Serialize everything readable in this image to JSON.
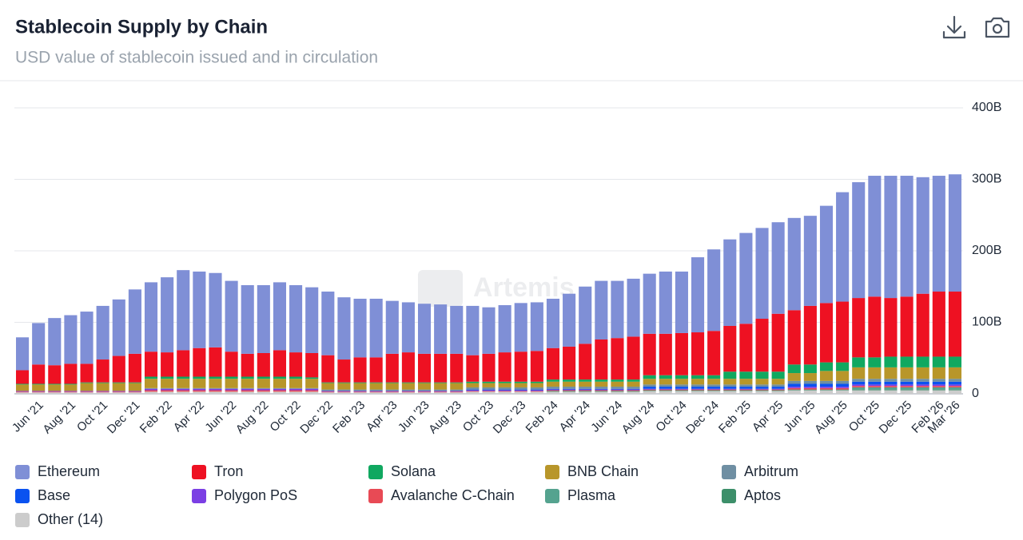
{
  "chart_data": {
    "type": "stacked_bar",
    "title": "Stablecoin Supply by Chain",
    "subtitle": "USD value of stablecoin issued and in circulation",
    "watermark": "Artemis",
    "categories": [
      null,
      "Jun '21",
      null,
      "Aug '21",
      null,
      "Oct '21",
      null,
      "Dec '21",
      null,
      "Feb '22",
      null,
      "Apr '22",
      null,
      "Jun '22",
      null,
      "Aug '22",
      null,
      "Oct '22",
      null,
      "Dec '22",
      null,
      "Feb '23",
      null,
      "Apr '23",
      null,
      "Jun '23",
      null,
      "Aug '23",
      null,
      "Oct '23",
      null,
      "Dec '23",
      null,
      "Feb '24",
      null,
      "Apr '24",
      null,
      "Jun '24",
      null,
      "Aug '24",
      null,
      "Oct '24",
      null,
      "Dec '24",
      null,
      "Feb '25",
      null,
      "Apr '25",
      null,
      "Jun '25",
      null,
      "Aug '25",
      null,
      "Oct '25",
      null,
      "Dec '25",
      null,
      "Feb '26",
      "Mar '26"
    ],
    "series": [
      {
        "name": "Ethereum",
        "color": "#7f8fd6",
        "values": [
          46,
          58,
          66,
          68,
          73,
          75,
          79,
          90,
          97,
          105,
          112,
          107,
          104,
          99,
          96,
          95,
          95,
          94,
          92,
          89,
          87,
          82,
          82,
          74,
          70,
          70,
          69,
          67,
          69,
          65,
          66,
          68,
          68,
          69,
          74,
          80,
          82,
          80,
          81,
          84,
          87,
          86,
          105,
          114,
          121,
          127,
          127,
          128,
          129,
          126,
          136,
          153,
          162,
          169,
          171,
          169,
          163,
          162,
          164
        ]
      },
      {
        "name": "Tron",
        "color": "#ee1122",
        "values": [
          19,
          27,
          26,
          28,
          26,
          32,
          37,
          40,
          35,
          34,
          37,
          40,
          41,
          35,
          32,
          33,
          37,
          34,
          34,
          38,
          32,
          35,
          35,
          40,
          42,
          40,
          40,
          40,
          37,
          39,
          41,
          42,
          43,
          44,
          46,
          50,
          56,
          58,
          60,
          58,
          58,
          59,
          60,
          62,
          64,
          67,
          74,
          81,
          76,
          82,
          83,
          85,
          83,
          85,
          82,
          84,
          88,
          91,
          91
        ]
      },
      {
        "name": "Solana",
        "color": "#10a860",
        "values": [
          1,
          1,
          1,
          1,
          1,
          1,
          1,
          1,
          3,
          3,
          3,
          3,
          3,
          3,
          3,
          3,
          3,
          3,
          2,
          1,
          1,
          1,
          1,
          1,
          1,
          1,
          1,
          1,
          2,
          2,
          2,
          2,
          2,
          3,
          3,
          3,
          3,
          3,
          3,
          5,
          5,
          5,
          5,
          5,
          10,
          10,
          10,
          10,
          12,
          12,
          12,
          12,
          14,
          14,
          15,
          15,
          15,
          15,
          15
        ]
      },
      {
        "name": "BNB Chain",
        "color": "#b8962a",
        "values": [
          9,
          9,
          9,
          9,
          11,
          11,
          11,
          11,
          13,
          13,
          13,
          13,
          13,
          13,
          13,
          13,
          13,
          13,
          13,
          9,
          9,
          9,
          9,
          9,
          9,
          9,
          9,
          9,
          6,
          6,
          6,
          6,
          6,
          7,
          7,
          7,
          7,
          7,
          7,
          8,
          8,
          8,
          8,
          8,
          8,
          8,
          8,
          8,
          11,
          11,
          14,
          14,
          16,
          16,
          16,
          16,
          16,
          16,
          16
        ]
      },
      {
        "name": "Arbitrum",
        "color": "#6f8fa3",
        "values": [
          0,
          0,
          0,
          0,
          0,
          0,
          0,
          0,
          1,
          1,
          1,
          1,
          1,
          1,
          1,
          1,
          1,
          1,
          1,
          2,
          2,
          2,
          2,
          2,
          2,
          2,
          2,
          2,
          3,
          3,
          3,
          3,
          3,
          3,
          3,
          3,
          3,
          3,
          3,
          3,
          3,
          3,
          3,
          3,
          3,
          3,
          3,
          3,
          4,
          4,
          4,
          4,
          4,
          4,
          4,
          4,
          4,
          4,
          4
        ]
      },
      {
        "name": "Base",
        "color": "#0a52f0",
        "values": [
          0,
          0,
          0,
          0,
          0,
          0,
          0,
          0,
          0,
          0,
          0,
          0,
          0,
          0,
          0,
          0,
          0,
          0,
          0,
          0,
          0,
          0,
          0,
          0,
          0,
          0,
          0,
          0,
          1,
          1,
          1,
          1,
          1,
          1,
          1,
          1,
          1,
          1,
          1,
          3,
          3,
          3,
          3,
          3,
          3,
          3,
          3,
          3,
          4,
          4,
          4,
          4,
          4,
          4,
          4,
          4,
          4,
          4,
          4
        ]
      },
      {
        "name": "Polygon PoS",
        "color": "#7b3fe4",
        "values": [
          1,
          1,
          1,
          1,
          1,
          1,
          1,
          1,
          2,
          2,
          2,
          2,
          2,
          2,
          2,
          2,
          2,
          2,
          2,
          1,
          1,
          1,
          1,
          1,
          1,
          1,
          1,
          1,
          1,
          1,
          1,
          1,
          1,
          1,
          1,
          1,
          1,
          1,
          1,
          1,
          1,
          1,
          1,
          1,
          1,
          1,
          1,
          1,
          2,
          2,
          2,
          2,
          2,
          2,
          2,
          2,
          2,
          2,
          2
        ]
      },
      {
        "name": "Avalanche C-Chain",
        "color": "#e84a55",
        "values": [
          1,
          1,
          1,
          1,
          1,
          1,
          1,
          1,
          2,
          2,
          2,
          2,
          2,
          2,
          2,
          2,
          2,
          2,
          2,
          1,
          1,
          1,
          1,
          1,
          1,
          1,
          1,
          1,
          1,
          1,
          1,
          1,
          1,
          1,
          1,
          1,
          1,
          1,
          1,
          1,
          1,
          1,
          1,
          1,
          1,
          1,
          1,
          1,
          2,
          2,
          2,
          2,
          2,
          2,
          2,
          2,
          2,
          2,
          2
        ]
      },
      {
        "name": "Plasma",
        "color": "#55a38f",
        "values": [
          0,
          0,
          0,
          0,
          0,
          0,
          0,
          0,
          0,
          0,
          0,
          0,
          0,
          0,
          0,
          0,
          0,
          0,
          0,
          0,
          0,
          0,
          0,
          0,
          0,
          0,
          0,
          0,
          0,
          0,
          0,
          0,
          0,
          0,
          0,
          0,
          0,
          0,
          0,
          0,
          0,
          0,
          0,
          0,
          0,
          0,
          0,
          0,
          0,
          0,
          0,
          0,
          3,
          3,
          3,
          3,
          3,
          3,
          3
        ]
      },
      {
        "name": "Aptos",
        "color": "#3d8f6a",
        "values": [
          0,
          0,
          0,
          0,
          0,
          0,
          0,
          0,
          0,
          0,
          0,
          0,
          0,
          0,
          0,
          0,
          0,
          0,
          0,
          0,
          0,
          0,
          0,
          0,
          0,
          0,
          0,
          0,
          0,
          0,
          0,
          0,
          0,
          1,
          1,
          1,
          1,
          1,
          1,
          1,
          1,
          1,
          1,
          1,
          1,
          1,
          1,
          1,
          1,
          1,
          1,
          1,
          1,
          1,
          1,
          1,
          1,
          1,
          1
        ]
      },
      {
        "name": "Other (14)",
        "color": "#cccccc",
        "values": [
          2,
          2,
          2,
          2,
          2,
          2,
          2,
          2,
          3,
          3,
          3,
          3,
          3,
          3,
          3,
          3,
          3,
          3,
          3,
          2,
          2,
          2,
          2,
          2,
          2,
          2,
          2,
          2,
          3,
          3,
          3,
          3,
          3,
          3,
          3,
          3,
          3,
          3,
          3,
          4,
          4,
          4,
          4,
          4,
          4,
          4,
          4,
          4,
          5,
          5,
          5,
          5,
          5,
          5,
          5,
          5,
          5,
          5,
          5
        ]
      }
    ],
    "ylim": [
      0,
      400
    ],
    "yticks": [
      0,
      {
        "value": 100,
        "label": "100B"
      },
      {
        "value": 200,
        "label": "200B"
      },
      {
        "value": 300,
        "label": "300B"
      },
      {
        "value": 400,
        "label": "400B"
      }
    ],
    "grid": true
  }
}
